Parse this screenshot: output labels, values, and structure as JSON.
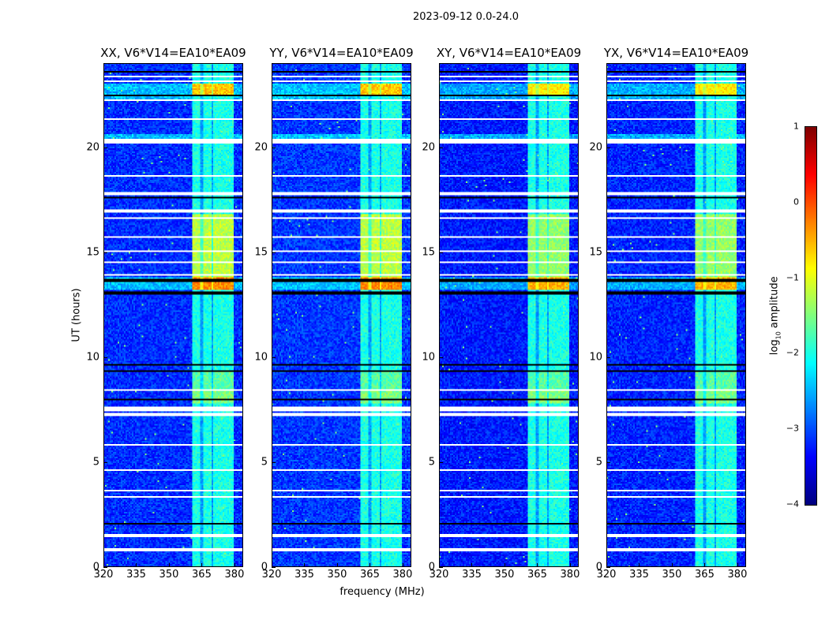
{
  "chart_data": {
    "type": "heatmap",
    "title": "2023-09-12 0.0-24.0",
    "xlabel": "frequency (MHz)",
    "ylabel": "UT (hours)",
    "xlim": [
      320,
      384
    ],
    "ylim": [
      0,
      24
    ],
    "xticks": [
      "320",
      "335",
      "350",
      "365",
      "380"
    ],
    "xtick_values": [
      320,
      335,
      350,
      365,
      380
    ],
    "yticks": [
      "0",
      "5",
      "10",
      "15",
      "20"
    ],
    "ytick_values": [
      0,
      5,
      10,
      15,
      20
    ],
    "colorbar": {
      "label_prefix": "log",
      "label_sub": "10",
      "label_suffix": " amplitude",
      "range": [
        -4,
        1
      ],
      "ticks": [
        "−4",
        "−3",
        "−2",
        "−1",
        "0",
        "1"
      ],
      "tick_values": [
        -4,
        -3,
        -2,
        -1,
        0,
        1
      ],
      "colormap": "jet"
    },
    "panels": [
      {
        "title": "XX, V6*V14=EA10*EA09",
        "background": -3.15,
        "band_boost": 1.15
      },
      {
        "title": "YY, V6*V14=EA10*EA09",
        "background": -3.1,
        "band_boost": 1.2
      },
      {
        "title": "XY, V6*V14=EA10*EA09",
        "background": -3.25,
        "band_boost": 1.1
      },
      {
        "title": "YX, V6*V14=EA10*EA09",
        "background": -3.2,
        "band_boost": 1.15
      }
    ],
    "rfi_subbands_mhz": [
      [
        360.5,
        364.5
      ],
      [
        365.5,
        369.8
      ],
      [
        370.5,
        375.0
      ],
      [
        375.6,
        380.0
      ]
    ],
    "band_level_by_time": [
      {
        "t": [
          0,
          7.8
        ],
        "level": -2.0
      },
      {
        "t": [
          7.8,
          8.5
        ],
        "level": -1.5
      },
      {
        "t": [
          8.5,
          9.4
        ],
        "level": -1.7
      },
      {
        "t": [
          9.4,
          13.2
        ],
        "level": -2.0
      },
      {
        "t": [
          13.2,
          13.8
        ],
        "level": -0.3
      },
      {
        "t": [
          13.8,
          16.8
        ],
        "level": -1.2
      },
      {
        "t": [
          16.8,
          22.4
        ],
        "level": -2.0
      },
      {
        "t": [
          22.4,
          23.0
        ],
        "level": -0.6
      },
      {
        "t": [
          23.0,
          24.0
        ],
        "level": -2.0
      }
    ],
    "elevated_background_hours": [
      [
        13.2,
        13.8
      ],
      [
        20.4,
        20.6
      ],
      [
        22.3,
        23.0
      ]
    ],
    "flagged_hours": [
      [
        0.75,
        0.9
      ],
      [
        1.45,
        1.55
      ],
      [
        2.3,
        2.35
      ],
      [
        2.9,
        2.95
      ],
      [
        3.3,
        3.35
      ],
      [
        3.6,
        3.65
      ],
      [
        4.6,
        4.65
      ],
      [
        5.0,
        5.05
      ],
      [
        5.8,
        5.85
      ],
      [
        6.5,
        6.55
      ],
      [
        7.2,
        7.35
      ],
      [
        7.45,
        7.65
      ],
      [
        8.4,
        8.45
      ],
      [
        10.55,
        10.6
      ],
      [
        12.8,
        12.85
      ],
      [
        13.85,
        13.95
      ],
      [
        14.5,
        14.55
      ],
      [
        15.0,
        15.05
      ],
      [
        15.7,
        15.75
      ],
      [
        16.6,
        16.65
      ],
      [
        16.9,
        17.05
      ],
      [
        17.7,
        17.85
      ],
      [
        18.6,
        18.65
      ],
      [
        20.2,
        20.4
      ],
      [
        21.3,
        21.35
      ],
      [
        22.2,
        22.25
      ],
      [
        23.1,
        23.2
      ],
      [
        23.35,
        23.4
      ]
    ],
    "zero_hours": [
      [
        0.35,
        0.4
      ],
      [
        2.05,
        2.1
      ],
      [
        7.95,
        8.0
      ],
      [
        9.3,
        9.35
      ],
      [
        9.6,
        9.65
      ],
      [
        13.0,
        13.1
      ],
      [
        13.6,
        13.7
      ],
      [
        14.9,
        14.95
      ],
      [
        16.25,
        16.3
      ],
      [
        17.3,
        17.35
      ],
      [
        17.55,
        17.6
      ],
      [
        21.5,
        21.55
      ],
      [
        22.1,
        22.15
      ],
      [
        22.45,
        22.5
      ],
      [
        23.55,
        23.6
      ]
    ]
  }
}
